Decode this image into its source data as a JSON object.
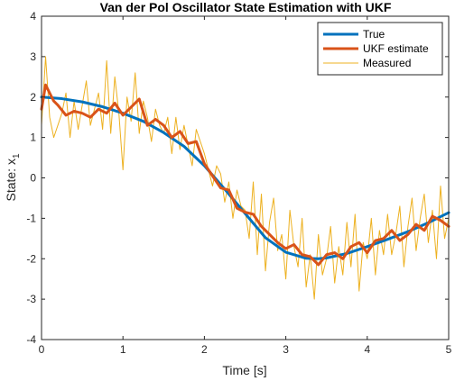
{
  "chart_data": {
    "type": "line",
    "title": "Van der Pol Oscillator State Estimation with UKF",
    "xlabel": "Time [s]",
    "ylabel": "State: x",
    "ylabel_subscript": "1",
    "xlim": [
      0,
      5
    ],
    "ylim": [
      -4,
      4
    ],
    "xticks": [
      0,
      1,
      2,
      3,
      4,
      5
    ],
    "yticks": [
      -4,
      -3,
      -2,
      -1,
      0,
      1,
      2,
      3,
      4
    ],
    "grid": false,
    "legend_position": "top-right",
    "series": [
      {
        "name": "True",
        "color": "#0072BD",
        "x": [
          0,
          0.25,
          0.5,
          0.75,
          1.0,
          1.25,
          1.5,
          1.75,
          2.0,
          2.25,
          2.5,
          2.75,
          3.0,
          3.25,
          3.4,
          3.5,
          3.75,
          4.0,
          4.25,
          4.5,
          4.75,
          5.0
        ],
        "values": [
          2.0,
          1.96,
          1.88,
          1.76,
          1.6,
          1.4,
          1.12,
          0.78,
          0.3,
          -0.28,
          -0.88,
          -1.48,
          -1.84,
          -1.99,
          -2.0,
          -1.98,
          -1.87,
          -1.7,
          -1.52,
          -1.33,
          -1.11,
          -0.86
        ]
      },
      {
        "name": "UKF estimate",
        "color": "#D95319",
        "x": [
          0,
          0.05,
          0.1,
          0.15,
          0.2,
          0.3,
          0.4,
          0.5,
          0.6,
          0.7,
          0.8,
          0.9,
          1.0,
          1.1,
          1.2,
          1.3,
          1.4,
          1.5,
          1.6,
          1.7,
          1.8,
          1.9,
          2.0,
          2.1,
          2.2,
          2.3,
          2.4,
          2.5,
          2.6,
          2.7,
          2.8,
          2.9,
          3.0,
          3.1,
          3.2,
          3.3,
          3.4,
          3.5,
          3.6,
          3.7,
          3.8,
          3.9,
          4.0,
          4.1,
          4.2,
          4.3,
          4.4,
          4.5,
          4.6,
          4.7,
          4.8,
          4.9,
          5.0
        ],
        "values": [
          1.7,
          2.3,
          2.1,
          1.9,
          1.8,
          1.55,
          1.65,
          1.6,
          1.5,
          1.7,
          1.6,
          1.85,
          1.55,
          1.75,
          1.95,
          1.3,
          1.45,
          1.3,
          1.0,
          1.15,
          0.85,
          0.9,
          0.35,
          0.05,
          -0.25,
          -0.3,
          -0.75,
          -0.85,
          -0.9,
          -1.2,
          -1.4,
          -1.6,
          -1.75,
          -1.65,
          -1.9,
          -1.95,
          -2.15,
          -1.9,
          -1.85,
          -2.0,
          -1.7,
          -1.6,
          -1.85,
          -1.55,
          -1.5,
          -1.3,
          -1.55,
          -1.4,
          -1.15,
          -1.3,
          -0.95,
          -1.05,
          -1.2
        ]
      },
      {
        "name": "Measured",
        "color": "#EDB120",
        "x": [
          0,
          0.05,
          0.1,
          0.15,
          0.2,
          0.25,
          0.3,
          0.35,
          0.4,
          0.45,
          0.5,
          0.55,
          0.6,
          0.65,
          0.7,
          0.75,
          0.8,
          0.85,
          0.9,
          0.95,
          1.0,
          1.05,
          1.1,
          1.15,
          1.2,
          1.25,
          1.3,
          1.35,
          1.4,
          1.45,
          1.5,
          1.55,
          1.6,
          1.65,
          1.7,
          1.75,
          1.8,
          1.85,
          1.9,
          1.95,
          2.0,
          2.05,
          2.1,
          2.15,
          2.2,
          2.25,
          2.3,
          2.35,
          2.4,
          2.45,
          2.5,
          2.55,
          2.6,
          2.65,
          2.7,
          2.75,
          2.8,
          2.85,
          2.9,
          2.95,
          3.0,
          3.05,
          3.1,
          3.15,
          3.2,
          3.25,
          3.3,
          3.35,
          3.4,
          3.45,
          3.5,
          3.55,
          3.6,
          3.65,
          3.7,
          3.75,
          3.8,
          3.85,
          3.9,
          3.95,
          4.0,
          4.05,
          4.1,
          4.15,
          4.2,
          4.25,
          4.3,
          4.35,
          4.4,
          4.45,
          4.5,
          4.55,
          4.6,
          4.65,
          4.7,
          4.75,
          4.8,
          4.85,
          4.9,
          4.95,
          5.0
        ],
        "values": [
          1.3,
          3.0,
          1.5,
          1.0,
          1.3,
          1.6,
          2.1,
          1.0,
          1.9,
          1.2,
          1.8,
          2.4,
          1.3,
          1.7,
          2.1,
          1.2,
          2.9,
          1.1,
          2.5,
          1.6,
          0.2,
          2.0,
          1.4,
          2.6,
          1.1,
          1.9,
          1.5,
          0.9,
          1.7,
          1.3,
          1.1,
          1.5,
          0.6,
          1.5,
          0.7,
          1.3,
          0.8,
          0.3,
          1.2,
          0.9,
          0.6,
          0.2,
          -0.2,
          0.3,
          0.1,
          -0.6,
          -0.1,
          -1.0,
          -0.3,
          -0.7,
          -0.8,
          -1.5,
          -0.1,
          -1.9,
          -0.4,
          -2.3,
          -1.1,
          -0.5,
          -1.8,
          -1.4,
          -2.5,
          -0.8,
          -1.7,
          -2.2,
          -1.0,
          -2.7,
          -1.9,
          -3.0,
          -1.4,
          -2.4,
          -2.0,
          -1.2,
          -2.6,
          -1.7,
          -2.4,
          -1.1,
          -2.2,
          -0.9,
          -2.8,
          -1.6,
          -2.0,
          -1.0,
          -2.4,
          -1.3,
          -1.9,
          -0.9,
          -1.9,
          -1.4,
          -0.7,
          -2.2,
          -1.2,
          -0.5,
          -1.8,
          -1.0,
          -0.4,
          -1.6,
          -0.8,
          -2.0,
          -0.2,
          -1.5,
          -1.0
        ]
      }
    ]
  }
}
